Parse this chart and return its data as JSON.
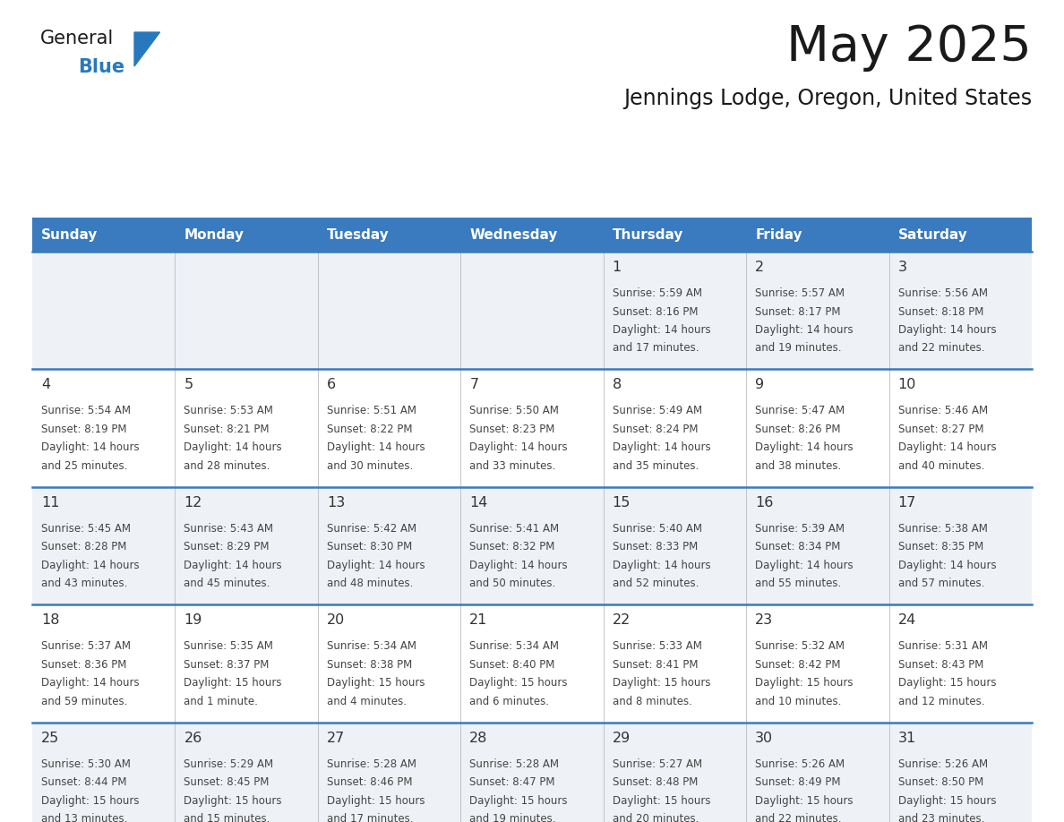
{
  "title": "May 2025",
  "subtitle": "Jennings Lodge, Oregon, United States",
  "days_of_week": [
    "Sunday",
    "Monday",
    "Tuesday",
    "Wednesday",
    "Thursday",
    "Friday",
    "Saturday"
  ],
  "header_bg": "#3a7abf",
  "header_text": "#ffffff",
  "row_bg_even": "#eef2f7",
  "row_bg_odd": "#ffffff",
  "separator_color": "#3a7abf",
  "day_number_color": "#333333",
  "cell_text_color": "#444444",
  "title_color": "#1a1a1a",
  "subtitle_color": "#1a1a1a",
  "logo_black": "#1a1a1a",
  "logo_blue": "#2878be",
  "calendar": [
    [
      null,
      null,
      null,
      null,
      {
        "day": 1,
        "sunrise": "5:59 AM",
        "sunset": "8:16 PM",
        "daylight": "14 hours and 17 minutes"
      },
      {
        "day": 2,
        "sunrise": "5:57 AM",
        "sunset": "8:17 PM",
        "daylight": "14 hours and 19 minutes"
      },
      {
        "day": 3,
        "sunrise": "5:56 AM",
        "sunset": "8:18 PM",
        "daylight": "14 hours and 22 minutes"
      }
    ],
    [
      {
        "day": 4,
        "sunrise": "5:54 AM",
        "sunset": "8:19 PM",
        "daylight": "14 hours and 25 minutes"
      },
      {
        "day": 5,
        "sunrise": "5:53 AM",
        "sunset": "8:21 PM",
        "daylight": "14 hours and 28 minutes"
      },
      {
        "day": 6,
        "sunrise": "5:51 AM",
        "sunset": "8:22 PM",
        "daylight": "14 hours and 30 minutes"
      },
      {
        "day": 7,
        "sunrise": "5:50 AM",
        "sunset": "8:23 PM",
        "daylight": "14 hours and 33 minutes"
      },
      {
        "day": 8,
        "sunrise": "5:49 AM",
        "sunset": "8:24 PM",
        "daylight": "14 hours and 35 minutes"
      },
      {
        "day": 9,
        "sunrise": "5:47 AM",
        "sunset": "8:26 PM",
        "daylight": "14 hours and 38 minutes"
      },
      {
        "day": 10,
        "sunrise": "5:46 AM",
        "sunset": "8:27 PM",
        "daylight": "14 hours and 40 minutes"
      }
    ],
    [
      {
        "day": 11,
        "sunrise": "5:45 AM",
        "sunset": "8:28 PM",
        "daylight": "14 hours and 43 minutes"
      },
      {
        "day": 12,
        "sunrise": "5:43 AM",
        "sunset": "8:29 PM",
        "daylight": "14 hours and 45 minutes"
      },
      {
        "day": 13,
        "sunrise": "5:42 AM",
        "sunset": "8:30 PM",
        "daylight": "14 hours and 48 minutes"
      },
      {
        "day": 14,
        "sunrise": "5:41 AM",
        "sunset": "8:32 PM",
        "daylight": "14 hours and 50 minutes"
      },
      {
        "day": 15,
        "sunrise": "5:40 AM",
        "sunset": "8:33 PM",
        "daylight": "14 hours and 52 minutes"
      },
      {
        "day": 16,
        "sunrise": "5:39 AM",
        "sunset": "8:34 PM",
        "daylight": "14 hours and 55 minutes"
      },
      {
        "day": 17,
        "sunrise": "5:38 AM",
        "sunset": "8:35 PM",
        "daylight": "14 hours and 57 minutes"
      }
    ],
    [
      {
        "day": 18,
        "sunrise": "5:37 AM",
        "sunset": "8:36 PM",
        "daylight": "14 hours and 59 minutes"
      },
      {
        "day": 19,
        "sunrise": "5:35 AM",
        "sunset": "8:37 PM",
        "daylight": "15 hours and 1 minute"
      },
      {
        "day": 20,
        "sunrise": "5:34 AM",
        "sunset": "8:38 PM",
        "daylight": "15 hours and 4 minutes"
      },
      {
        "day": 21,
        "sunrise": "5:34 AM",
        "sunset": "8:40 PM",
        "daylight": "15 hours and 6 minutes"
      },
      {
        "day": 22,
        "sunrise": "5:33 AM",
        "sunset": "8:41 PM",
        "daylight": "15 hours and 8 minutes"
      },
      {
        "day": 23,
        "sunrise": "5:32 AM",
        "sunset": "8:42 PM",
        "daylight": "15 hours and 10 minutes"
      },
      {
        "day": 24,
        "sunrise": "5:31 AM",
        "sunset": "8:43 PM",
        "daylight": "15 hours and 12 minutes"
      }
    ],
    [
      {
        "day": 25,
        "sunrise": "5:30 AM",
        "sunset": "8:44 PM",
        "daylight": "15 hours and 13 minutes"
      },
      {
        "day": 26,
        "sunrise": "5:29 AM",
        "sunset": "8:45 PM",
        "daylight": "15 hours and 15 minutes"
      },
      {
        "day": 27,
        "sunrise": "5:28 AM",
        "sunset": "8:46 PM",
        "daylight": "15 hours and 17 minutes"
      },
      {
        "day": 28,
        "sunrise": "5:28 AM",
        "sunset": "8:47 PM",
        "daylight": "15 hours and 19 minutes"
      },
      {
        "day": 29,
        "sunrise": "5:27 AM",
        "sunset": "8:48 PM",
        "daylight": "15 hours and 20 minutes"
      },
      {
        "day": 30,
        "sunrise": "5:26 AM",
        "sunset": "8:49 PM",
        "daylight": "15 hours and 22 minutes"
      },
      {
        "day": 31,
        "sunrise": "5:26 AM",
        "sunset": "8:50 PM",
        "daylight": "15 hours and 23 minutes"
      }
    ]
  ]
}
